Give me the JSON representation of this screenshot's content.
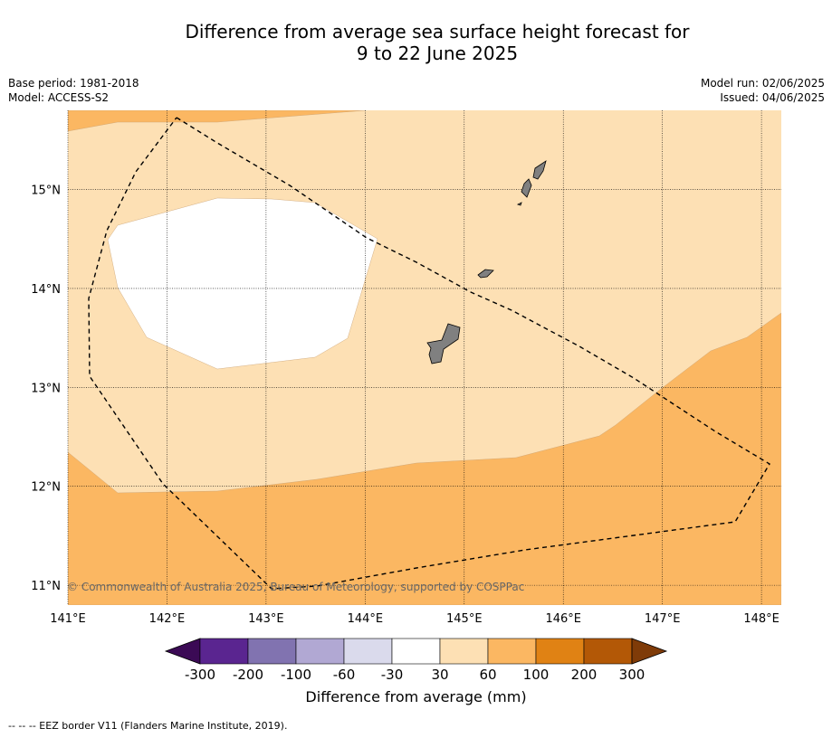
{
  "title": {
    "line1": "Difference from average sea surface height forecast for",
    "line2": "9 to 22 June 2025"
  },
  "meta": {
    "base_period": "Base period: 1981-2018",
    "model": "Model: ACCESS-S2",
    "model_run": "Model run: 02/06/2025",
    "issued": "Issued: 04/06/2025"
  },
  "map": {
    "lon_range": [
      141.0,
      148.2
    ],
    "lat_range": [
      10.8,
      15.8
    ],
    "lon_ticks": [
      "141°E",
      "142°E",
      "143°E",
      "144°E",
      "145°E",
      "146°E",
      "147°E",
      "148°E"
    ],
    "lat_ticks": [
      "11°N",
      "12°N",
      "13°N",
      "14°N",
      "15°N"
    ],
    "grid": true,
    "land_color": "#808080",
    "copyright": "© Commonwealth of Australia 2025, Bureau of Meteorology, supported by COSPPac"
  },
  "colorbar": {
    "title": "Difference from average (mm)",
    "tick_labels": [
      "-300",
      "-200",
      "-100",
      "-60",
      "-30",
      "30",
      "60",
      "100",
      "200",
      "300"
    ],
    "colors": [
      "#3b0a55",
      "#5a2590",
      "#8173b0",
      "#b1a8d3",
      "#dadaec",
      "#ffffff",
      "#fde0b4",
      "#fbb762",
      "#e08214",
      "#b35806",
      "#7f3b08"
    ]
  },
  "footnote": "-- -- -- EEZ border V11 (Flanders Marine Institute, 2019)."
}
